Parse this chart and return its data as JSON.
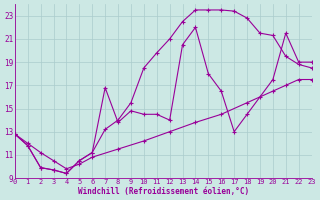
{
  "xlabel": "Windchill (Refroidissement éolien,°C)",
  "xlim": [
    0,
    23
  ],
  "ylim": [
    9,
    24
  ],
  "xticks": [
    0,
    1,
    2,
    3,
    4,
    5,
    6,
    7,
    8,
    9,
    10,
    11,
    12,
    13,
    14,
    15,
    16,
    17,
    18,
    19,
    20,
    21,
    22,
    23
  ],
  "yticks": [
    9,
    11,
    13,
    15,
    17,
    19,
    21,
    23
  ],
  "bg_color": "#cce8e4",
  "grid_color": "#aacccc",
  "line_color": "#990099",
  "line1_x": [
    0,
    1,
    2,
    3,
    4,
    5,
    6,
    7,
    8,
    9,
    10,
    11,
    12,
    13,
    14,
    15,
    16,
    17,
    18,
    19,
    20,
    21,
    22,
    23
  ],
  "line1_y": [
    12.8,
    11.8,
    9.9,
    9.7,
    9.4,
    10.5,
    11.2,
    13.2,
    14.0,
    15.5,
    18.5,
    19.8,
    21.0,
    22.5,
    23.5,
    23.5,
    23.5,
    23.4,
    22.8,
    21.5,
    21.3,
    19.5,
    18.8,
    18.5
  ],
  "line2_x": [
    0,
    1,
    2,
    3,
    4,
    5,
    6,
    7,
    8,
    9,
    10,
    11,
    12,
    13,
    14,
    15,
    16,
    17,
    18,
    19,
    20,
    21,
    22,
    23
  ],
  "line2_y": [
    12.8,
    11.8,
    9.9,
    9.7,
    9.4,
    10.5,
    11.2,
    16.8,
    13.8,
    14.8,
    14.5,
    14.5,
    14.0,
    20.5,
    22.0,
    18.0,
    16.5,
    13.0,
    14.5,
    16.0,
    17.5,
    21.5,
    19.0,
    19.0
  ],
  "line3_x": [
    0,
    1,
    2,
    3,
    4,
    5,
    6,
    8,
    10,
    12,
    14,
    16,
    18,
    20,
    21,
    22,
    23
  ],
  "line3_y": [
    12.8,
    12.0,
    11.2,
    10.5,
    9.8,
    10.2,
    10.8,
    11.5,
    12.2,
    13.0,
    13.8,
    14.5,
    15.5,
    16.5,
    17.0,
    17.5,
    17.5
  ]
}
